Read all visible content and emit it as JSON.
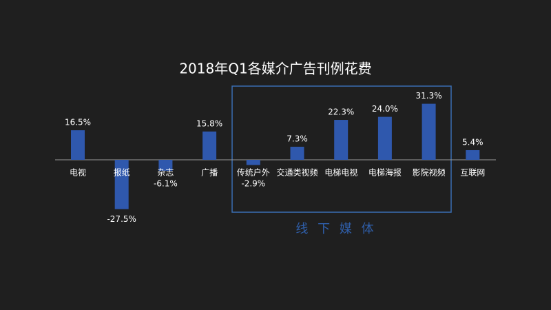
{
  "chart_data": {
    "type": "bar",
    "title": "2018年Q1各媒介广告刊例花费",
    "categories": [
      "电视",
      "报纸",
      "杂志",
      "广播",
      "传统户外",
      "交通类视频",
      "电梯电视",
      "电梯海报",
      "影院视频",
      "互联网"
    ],
    "values": [
      16.5,
      -27.5,
      -6.1,
      15.8,
      -2.9,
      7.3,
      22.3,
      24.0,
      31.3,
      5.4
    ],
    "value_labels": [
      "16.5%",
      "-27.5%",
      "-6.1%",
      "15.8%",
      "-2.9%",
      "7.3%",
      "22.3%",
      "24.0%",
      "31.3%",
      "5.4%"
    ],
    "color": "#2f58ad",
    "annotation": "线 下 媒 体"
  }
}
